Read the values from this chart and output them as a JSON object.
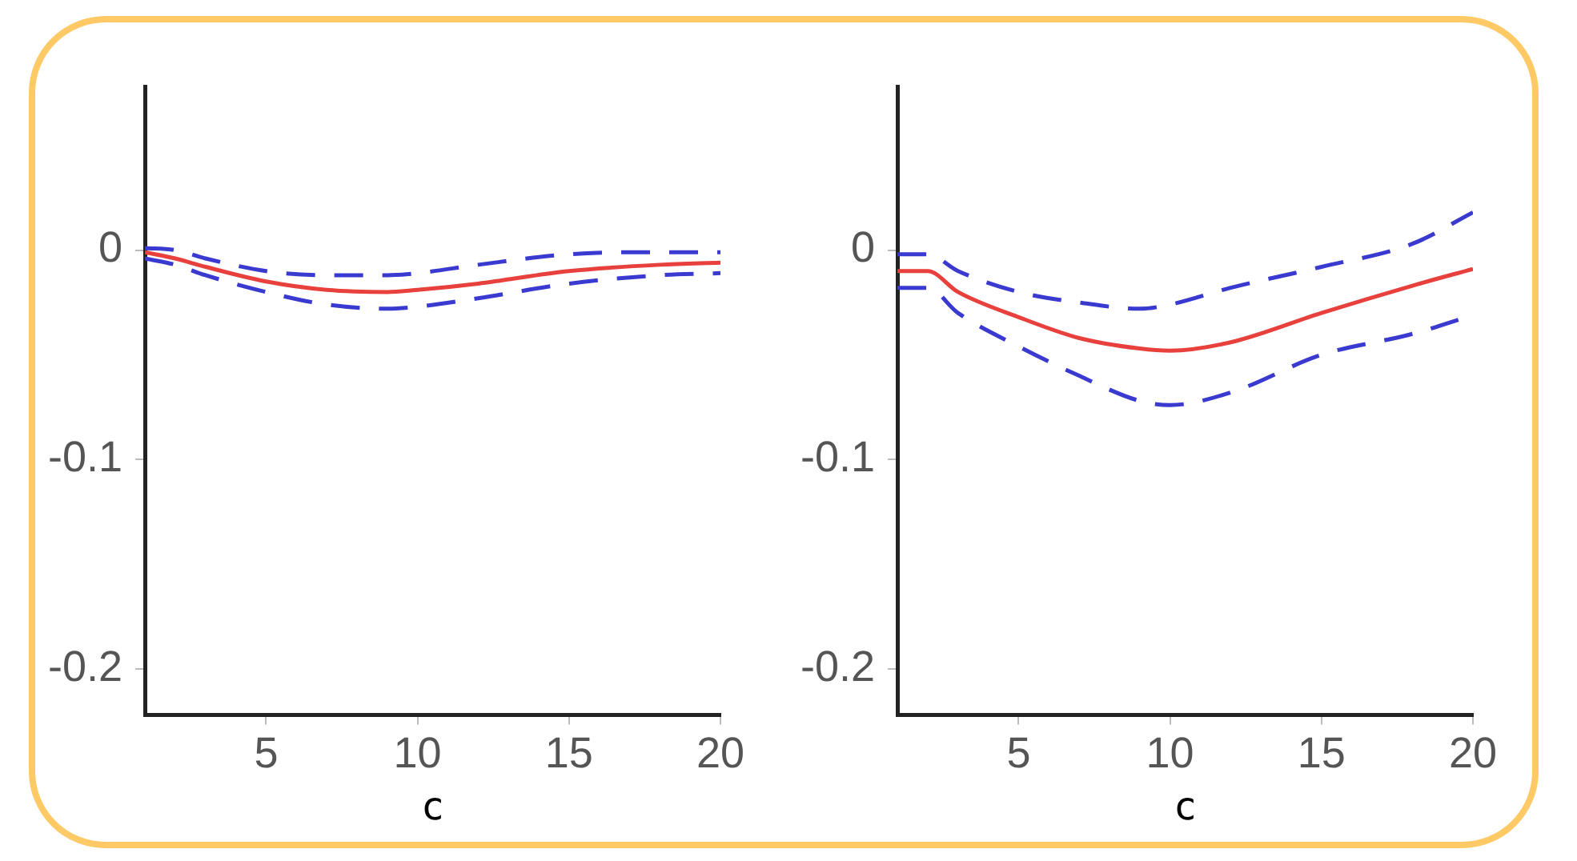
{
  "chart_data": [
    {
      "type": "line",
      "xlabel": "c",
      "xlim": [
        1,
        20
      ],
      "xticks": [
        5,
        10,
        15,
        20
      ],
      "ylim": [
        -0.222,
        0.078
      ],
      "yticks": [
        0,
        -0.1,
        -0.2
      ],
      "grid": false,
      "legend": false,
      "marker": "none",
      "series": [
        {
          "color": "#3a3ad0",
          "line_style": "dashed",
          "x": [
            1,
            2,
            3,
            5,
            7,
            9,
            10,
            12,
            15,
            18,
            20
          ],
          "values": [
            0.001,
            0,
            -0.004,
            -0.01,
            -0.012,
            -0.012,
            -0.011,
            -0.007,
            -0.002,
            -0.001,
            -0.001
          ]
        },
        {
          "color": "#3a3ad0",
          "line_style": "dashed",
          "x": [
            1,
            2,
            3,
            5,
            7,
            9,
            10,
            12,
            15,
            18,
            20
          ],
          "values": [
            -0.004,
            -0.007,
            -0.012,
            -0.02,
            -0.026,
            -0.028,
            -0.027,
            -0.023,
            -0.016,
            -0.012,
            -0.011
          ]
        },
        {
          "color": "#e8403c",
          "line_style": "solid",
          "x": [
            1,
            2,
            3,
            5,
            7,
            9,
            10,
            12,
            15,
            18,
            20
          ],
          "values": [
            -0.001,
            -0.004,
            -0.008,
            -0.015,
            -0.019,
            -0.02,
            -0.019,
            -0.016,
            -0.01,
            -0.007,
            -0.006
          ]
        }
      ]
    },
    {
      "type": "line",
      "xlabel": "c",
      "xlim": [
        1,
        20
      ],
      "xticks": [
        5,
        10,
        15,
        20
      ],
      "ylim": [
        -0.222,
        0.078
      ],
      "yticks": [
        0,
        -0.1,
        -0.2
      ],
      "grid": false,
      "legend": false,
      "marker": "none",
      "series": [
        {
          "color": "#3a3ad0",
          "line_style": "dashed",
          "x": [
            1,
            2,
            3,
            5,
            7,
            9,
            10,
            12,
            15,
            18,
            20
          ],
          "values": [
            -0.002,
            -0.002,
            -0.01,
            -0.02,
            -0.025,
            -0.028,
            -0.026,
            -0.018,
            -0.008,
            0.003,
            0.018
          ]
        },
        {
          "color": "#3a3ad0",
          "line_style": "dashed",
          "x": [
            1,
            2,
            3,
            5,
            7,
            9,
            10,
            12,
            15,
            18,
            20
          ],
          "values": [
            -0.018,
            -0.018,
            -0.03,
            -0.046,
            -0.06,
            -0.072,
            -0.074,
            -0.068,
            -0.05,
            -0.04,
            -0.031
          ]
        },
        {
          "color": "#e8403c",
          "line_style": "solid",
          "x": [
            1,
            2,
            3,
            5,
            7,
            9,
            10,
            12,
            15,
            18,
            20
          ],
          "values": [
            -0.01,
            -0.01,
            -0.02,
            -0.032,
            -0.042,
            -0.047,
            -0.048,
            -0.044,
            -0.03,
            -0.017,
            -0.009
          ]
        }
      ]
    }
  ]
}
